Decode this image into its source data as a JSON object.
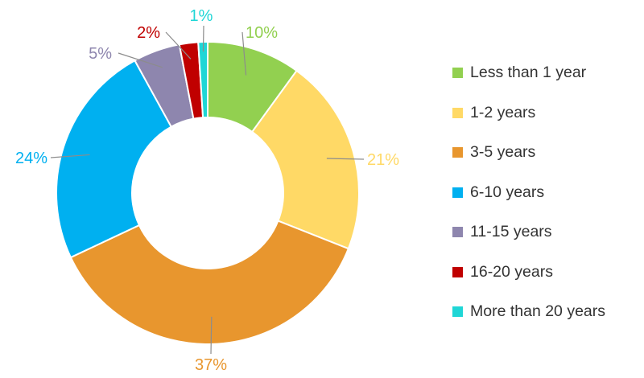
{
  "chart_data": {
    "type": "pie",
    "variant": "donut",
    "title": "",
    "categories": [
      "Less than 1 year",
      "1-2 years",
      "3-5 years",
      "6-10 years",
      "11-15 years",
      "16-20 years",
      "More than 20 years"
    ],
    "values": [
      10,
      21,
      37,
      24,
      5,
      2,
      1
    ],
    "value_labels": [
      "10%",
      "21%",
      "37%",
      "24%",
      "5%",
      "2%",
      "1%"
    ],
    "colors": [
      "#92D050",
      "#FFD966",
      "#E8962E",
      "#00B0F0",
      "#8E86AE",
      "#C00000",
      "#1FD6D6"
    ],
    "label_colors": [
      "#92D050",
      "#FFD966",
      "#E8962E",
      "#00B0F0",
      "#8E86AE",
      "#C00000",
      "#1FD6D6"
    ],
    "legend_position": "right",
    "start_angle": "12 o'clock, clockwise"
  }
}
